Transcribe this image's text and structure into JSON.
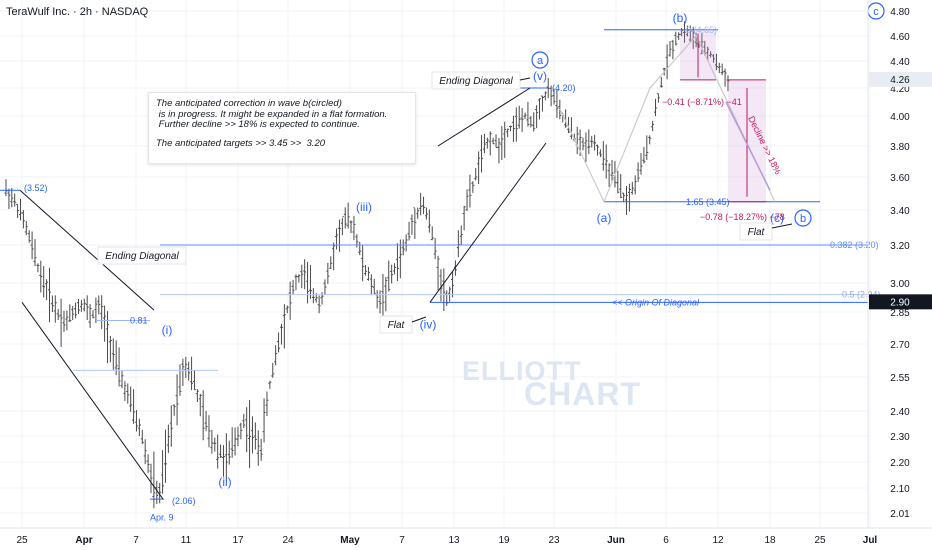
{
  "header": {
    "symbol_title": "TeraWulf Inc. · 2h · NASDAQ"
  },
  "note": {
    "lines": [
      "The anticipated correction in wave b(circled)",
      " is in progress. It might be expanded in a flat formation.",
      " Further decline >> 18% is expected to continue."
    ],
    "targets": "The anticipated targets >> 3.45 >>  3.20"
  },
  "watermark": {
    "line1": "ELLIOTT",
    "line2": "CHART"
  },
  "colors": {
    "accent": "#2962ff",
    "pink": "#c2185b",
    "grid": "#f0f3fa",
    "candle": "#4a4a4a",
    "price_tag": "#131722"
  },
  "chart_data": {
    "type": "candlestick",
    "title": "TeraWulf Inc. · 2h · NASDAQ",
    "y_ticks": [
      "4.80",
      "4.60",
      "4.40",
      "4.20",
      "4.00",
      "3.80",
      "3.60",
      "3.40",
      "3.20",
      "3.00",
      "2.85",
      "2.70",
      "2.55",
      "2.40",
      "2.30",
      "2.20",
      "2.10",
      "2.01"
    ],
    "x_ticks": [
      "25",
      "Apr",
      "7",
      "11",
      "17",
      "24",
      "May",
      "7",
      "13",
      "19",
      "23",
      "Jun",
      "6",
      "12",
      "18",
      "25",
      "Jul"
    ],
    "current_price": "4.26",
    "origin_price": "2.90",
    "series_path": [
      3.52,
      3.45,
      3.35,
      3.2,
      3.05,
      2.95,
      2.85,
      2.8,
      2.86,
      2.9,
      2.83,
      2.88,
      2.75,
      2.6,
      2.5,
      2.4,
      2.3,
      2.15,
      2.06,
      2.25,
      2.45,
      2.62,
      2.55,
      2.4,
      2.3,
      2.25,
      2.2,
      2.28,
      2.36,
      2.3,
      2.25,
      2.5,
      2.7,
      2.85,
      3.0,
      3.05,
      2.95,
      2.9,
      3.05,
      3.25,
      3.35,
      3.3,
      3.1,
      3.0,
      2.9,
      3.0,
      3.1,
      3.2,
      3.35,
      3.45,
      3.3,
      3.05,
      2.9,
      3.1,
      3.4,
      3.55,
      3.75,
      3.85,
      3.8,
      3.9,
      3.95,
      4.0,
      3.95,
      4.1,
      4.2,
      4.05,
      3.95,
      3.85,
      3.8,
      3.85,
      3.75,
      3.65,
      3.55,
      3.45,
      3.55,
      3.7,
      3.9,
      4.2,
      4.45,
      4.6,
      4.65,
      4.58,
      4.5,
      4.45,
      4.35,
      4.26
    ],
    "waves": [
      {
        "label": "(i)",
        "price": 2.7
      },
      {
        "label": "(ii)",
        "price": 2.2
      },
      {
        "label": "(iii)",
        "price": 3.35
      },
      {
        "label": "(iv)",
        "price": 2.9
      },
      {
        "label": "(v)",
        "price": 4.2
      },
      {
        "label": "a",
        "price": 4.2,
        "circled": true
      },
      {
        "label": "(a)",
        "price": 3.45
      },
      {
        "label": "(b)",
        "price": 4.65
      },
      {
        "label": "(c)",
        "price": 3.45
      },
      {
        "label": "b",
        "price": 3.3,
        "circled": true
      },
      {
        "label": "c",
        "price": 4.8,
        "circled": true
      }
    ],
    "price_labels": [
      {
        "text": "(3.52)",
        "price": 3.52
      },
      {
        "text": "(2.06)",
        "price": 2.06
      },
      {
        "text": "Apr. 9",
        "price": 2.03
      },
      {
        "text": "(4.20)",
        "price": 4.2
      },
      {
        "text": "0.81",
        "price": 2.81
      }
    ],
    "fib_levels": [
      {
        "text": "0.382 (3.20)",
        "price": 3.2
      },
      {
        "text": "0.5 (2.94)",
        "price": 2.94
      },
      {
        "text": "1.65 (3.45)",
        "price": 3.45
      },
      {
        "text": "0 (4.65)",
        "price": 4.65
      }
    ],
    "annotations": {
      "ending_diagonal": "Ending Diagonal",
      "flat": "Flat",
      "origin_of_diagonal": "<< Origin Of Diagonal",
      "decline": "Decline >> 18%",
      "measure_small": "−0.41 (−8.71%) −41",
      "measure_big": "−0.78 (−18.27%) −78"
    }
  }
}
